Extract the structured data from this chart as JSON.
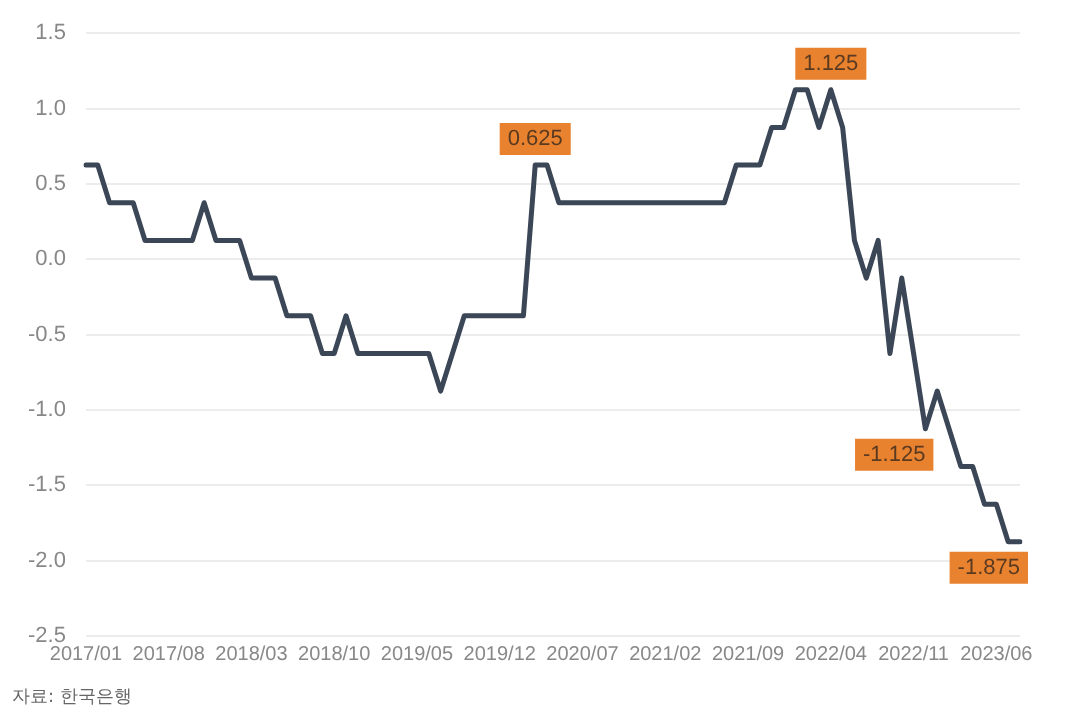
{
  "chart_data": {
    "type": "line",
    "categories": [
      "2017/01",
      null,
      null,
      null,
      null,
      null,
      null,
      "2017/08",
      null,
      null,
      null,
      null,
      null,
      null,
      "2018/03",
      null,
      null,
      null,
      null,
      null,
      null,
      "2018/10",
      null,
      null,
      null,
      null,
      null,
      null,
      "2019/05",
      null,
      null,
      null,
      null,
      null,
      null,
      "2019/12",
      null,
      null,
      null,
      null,
      null,
      null,
      "2020/07",
      null,
      null,
      null,
      null,
      null,
      null,
      "2021/02",
      null,
      null,
      null,
      null,
      null,
      null,
      "2021/09",
      null,
      null,
      null,
      null,
      null,
      null,
      "2022/04",
      null,
      null,
      null,
      null,
      null,
      null,
      "2022/11",
      null,
      null,
      null,
      null,
      null,
      null,
      "2023/06",
      null,
      null
    ],
    "series": [
      {
        "color": "#3b4656",
        "values": [
          0.625,
          0.625,
          0.375,
          0.375,
          0.375,
          0.125,
          0.125,
          0.125,
          0.125,
          0.125,
          0.375,
          0.125,
          0.125,
          0.125,
          -0.125,
          -0.125,
          -0.125,
          -0.375,
          -0.375,
          -0.375,
          -0.625,
          -0.625,
          -0.375,
          -0.625,
          -0.625,
          -0.625,
          -0.625,
          -0.625,
          -0.625,
          -0.625,
          -0.875,
          -0.625,
          -0.375,
          -0.375,
          -0.375,
          -0.375,
          -0.375,
          -0.375,
          0.625,
          0.625,
          0.375,
          0.375,
          0.375,
          0.375,
          0.375,
          0.375,
          0.375,
          0.375,
          0.375,
          0.375,
          0.375,
          0.375,
          0.375,
          0.375,
          0.375,
          0.625,
          0.625,
          0.625,
          0.875,
          0.875,
          1.125,
          1.125,
          0.875,
          1.125,
          0.875,
          0.125,
          -0.125,
          0.125,
          -0.625,
          -0.125,
          -0.625,
          -1.125,
          -0.875,
          -1.125,
          -1.375,
          -1.375,
          -1.625,
          -1.625,
          -1.875,
          -1.875
        ],
        "value_labels": [
          null,
          null,
          null,
          null,
          null,
          null,
          null,
          null,
          null,
          null,
          null,
          null,
          null,
          null,
          null,
          null,
          null,
          null,
          null,
          null,
          null,
          null,
          null,
          null,
          null,
          null,
          null,
          null,
          null,
          null,
          null,
          null,
          null,
          null,
          null,
          null,
          null,
          null,
          "0.625",
          null,
          null,
          null,
          null,
          null,
          null,
          null,
          null,
          null,
          null,
          null,
          null,
          null,
          null,
          null,
          null,
          null,
          null,
          null,
          null,
          null,
          null,
          null,
          null,
          "1.125",
          null,
          null,
          null,
          null,
          null,
          null,
          null,
          "-1.125",
          null,
          null,
          null,
          null,
          null,
          null,
          null,
          "-1.875"
        ]
      }
    ],
    "ylim": [
      -2.5,
      1.5
    ],
    "yticks": [
      -2.5,
      {
        "value": -2,
        "label": "-2.0"
      },
      -1.5,
      {
        "value": -1,
        "label": "-1.0"
      },
      -0.5,
      {
        "value": 0,
        "label": "0.0"
      },
      0.5,
      {
        "value": 1,
        "label": "1.0"
      },
      1.5
    ],
    "grid": "y",
    "legend": false,
    "marker": "none",
    "line_style": "solid",
    "annotations": [
      "자료: 한국은행"
    ]
  }
}
